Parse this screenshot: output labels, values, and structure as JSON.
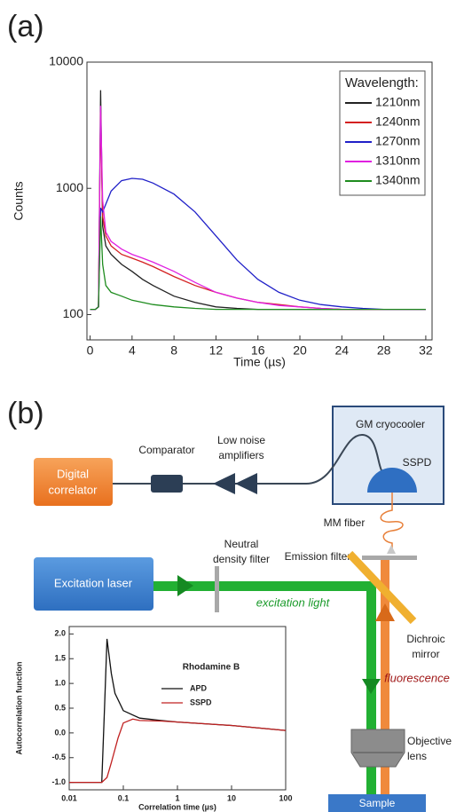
{
  "panels": [
    "(a)",
    "(b)"
  ],
  "chart_data": [
    {
      "type": "line",
      "xlabel": "Time (µs)",
      "ylabel": "Counts",
      "ylog": true,
      "x": [
        0,
        0.5,
        0.8,
        1.0,
        1.2,
        1.5,
        2,
        3,
        4,
        5,
        6,
        8,
        10,
        12,
        14,
        16,
        18,
        20,
        22,
        24,
        26,
        28,
        30,
        32
      ],
      "series": [
        {
          "name": "1210nm",
          "color": "#222222",
          "values": [
            110,
            110,
            115,
            6000,
            500,
            350,
            300,
            250,
            220,
            190,
            170,
            140,
            125,
            115,
            112,
            110,
            110,
            110,
            110,
            110,
            110,
            110,
            110,
            110
          ]
        },
        {
          "name": "1240nm",
          "color": "#d42020",
          "values": [
            110,
            110,
            115,
            4000,
            600,
            420,
            350,
            300,
            280,
            260,
            240,
            200,
            170,
            150,
            135,
            125,
            120,
            115,
            112,
            110,
            110,
            110,
            110,
            110
          ]
        },
        {
          "name": "1270nm",
          "color": "#2020c8",
          "values": [
            110,
            110,
            115,
            700,
            650,
            750,
            950,
            1150,
            1200,
            1180,
            1100,
            900,
            650,
            420,
            270,
            190,
            150,
            130,
            120,
            115,
            112,
            110,
            110,
            110
          ]
        },
        {
          "name": "1310nm",
          "color": "#e020e0",
          "values": [
            110,
            110,
            115,
            4500,
            800,
            450,
            380,
            330,
            300,
            280,
            260,
            220,
            180,
            150,
            135,
            125,
            118,
            115,
            112,
            110,
            110,
            110,
            110,
            110
          ]
        },
        {
          "name": "1340nm",
          "color": "#1e8c1e",
          "values": [
            110,
            110,
            115,
            600,
            250,
            170,
            150,
            140,
            130,
            125,
            120,
            115,
            112,
            110,
            110,
            110,
            110,
            110,
            110,
            110,
            110,
            110,
            110,
            110
          ]
        }
      ],
      "xlim": [
        -0.3,
        32.6
      ],
      "xticks": [
        0,
        4,
        8,
        12,
        16,
        20,
        24,
        28,
        32
      ],
      "ylim": [
        63,
        10000
      ],
      "yticks": [
        100,
        1000,
        10000
      ],
      "legend": "upper right",
      "legend_title": "Wavelength:",
      "grid": false
    },
    {
      "type": "line",
      "xlabel": "Correlation time (µs)",
      "ylabel": "Autocorrelation function",
      "xlog": true,
      "annotation": "Rhodamine B",
      "series": [
        {
          "name": "APD",
          "color": "#111111",
          "x": [
            0.01,
            0.03,
            0.04,
            0.045,
            0.05,
            0.06,
            0.07,
            0.1,
            0.2,
            0.5,
            1,
            10,
            100
          ],
          "values": [
            -1,
            -1,
            -1,
            0.5,
            1.9,
            1.2,
            0.8,
            0.45,
            0.3,
            0.25,
            0.22,
            0.15,
            0.05
          ]
        },
        {
          "name": "SSPD",
          "color": "#c02020",
          "x": [
            0.01,
            0.04,
            0.05,
            0.06,
            0.08,
            0.1,
            0.15,
            0.2,
            0.5,
            1,
            10,
            100
          ],
          "values": [
            -1,
            -1,
            -0.9,
            -0.6,
            -0.1,
            0.2,
            0.28,
            0.25,
            0.24,
            0.22,
            0.15,
            0.05
          ]
        }
      ],
      "xlim": [
        0.01,
        100
      ],
      "xticks": [
        0.01,
        0.1,
        1,
        10,
        100
      ],
      "ylim": [
        -1.15,
        2.15
      ],
      "yticks": [
        {
          "value": -1,
          "label": "-1.0"
        },
        {
          "value": -0.5,
          "label": "-0.5"
        },
        {
          "value": 0,
          "label": "0.0"
        },
        {
          "value": 0.5,
          "label": "0.5"
        },
        {
          "value": 1,
          "label": "1.0"
        },
        {
          "value": 1.5,
          "label": "1.5"
        },
        {
          "value": 2,
          "label": "2.0"
        }
      ],
      "legend": "upper right",
      "grid": false
    }
  ],
  "diagram": {
    "digital_correlator": [
      "Digital",
      "correlator"
    ],
    "comparator": "Comparator",
    "amplifiers": [
      "Low noise",
      "amplifiers"
    ],
    "cryocooler": "GM cryocooler",
    "sspd": "SSPD",
    "fiber": "MM fiber",
    "nd_filter": [
      "Neutral",
      "density filter"
    ],
    "emission_filter": "Emission filter",
    "laser": "Excitation laser",
    "excitation": "excitation light",
    "mirror": [
      "Dichroic",
      "mirror"
    ],
    "fluorescence": "fluorescence",
    "objective": [
      "Objective",
      "lens"
    ],
    "sample": "Sample"
  }
}
